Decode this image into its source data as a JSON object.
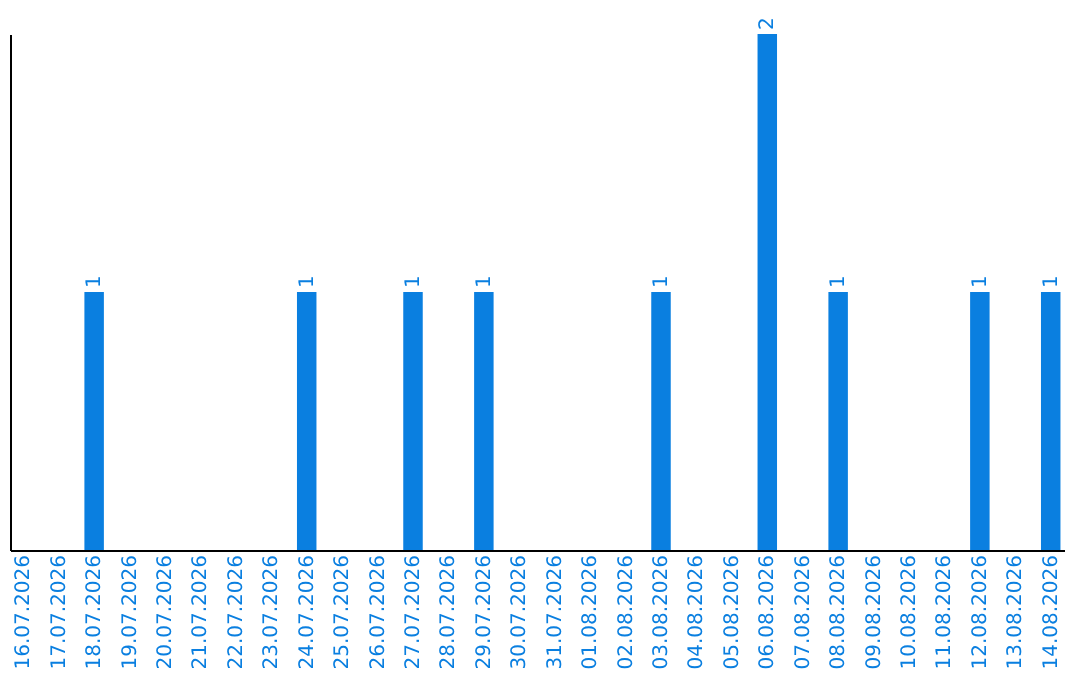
{
  "chart_data": {
    "type": "bar",
    "categories": [
      "16.07.2026",
      "17.07.2026",
      "18.07.2026",
      "19.07.2026",
      "20.07.2026",
      "21.07.2026",
      "22.07.2026",
      "23.07.2026",
      "24.07.2026",
      "25.07.2026",
      "26.07.2026",
      "27.07.2026",
      "28.07.2026",
      "29.07.2026",
      "30.07.2026",
      "31.07.2026",
      "01.08.2026",
      "02.08.2026",
      "03.08.2026",
      "04.08.2026",
      "05.08.2026",
      "06.08.2026",
      "07.08.2026",
      "08.08.2026",
      "09.08.2026",
      "10.08.2026",
      "11.08.2026",
      "12.08.2026",
      "13.08.2026",
      "14.08.2026"
    ],
    "values": [
      0,
      0,
      1,
      0,
      0,
      0,
      0,
      0,
      1,
      0,
      0,
      1,
      0,
      1,
      0,
      0,
      0,
      0,
      1,
      0,
      0,
      2,
      0,
      1,
      0,
      0,
      0,
      1,
      0,
      1
    ],
    "value_labels": [
      null,
      null,
      "1",
      null,
      null,
      null,
      null,
      null,
      "1",
      null,
      null,
      "1",
      null,
      "1",
      null,
      null,
      null,
      null,
      "1",
      null,
      null,
      "2",
      null,
      "1",
      null,
      null,
      null,
      "1",
      null,
      "1"
    ],
    "color": "#0a7fe0",
    "grid": false
  }
}
